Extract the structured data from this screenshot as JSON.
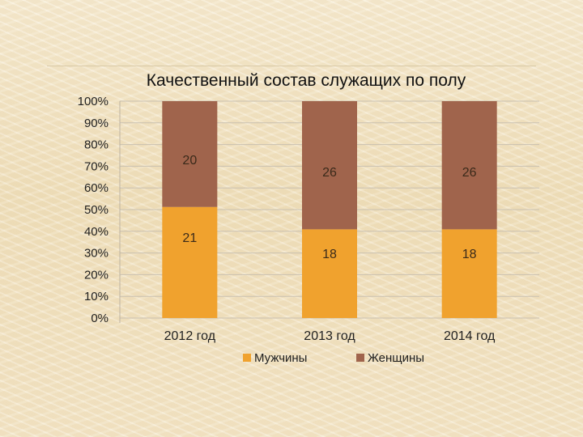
{
  "colors": {
    "men": "#f0a22e",
    "women": "#a0644c",
    "grid": "#c9c0b0",
    "axis": "#bdb3a2"
  },
  "chart_data": {
    "type": "bar",
    "stacked": "percent",
    "title": "Качественный состав служащих по полу",
    "categories": [
      "2012 год",
      "2013 год",
      "2014 год"
    ],
    "series": [
      {
        "name": "Мужчины",
        "values": [
          21,
          18,
          18
        ],
        "color": "#f0a22e"
      },
      {
        "name": "Женщины",
        "values": [
          20,
          26,
          26
        ],
        "color": "#a0644c"
      }
    ],
    "y_ticks": [
      "0%",
      "10%",
      "20%",
      "30%",
      "40%",
      "50%",
      "60%",
      "70%",
      "80%",
      "90%",
      "100%"
    ],
    "ylim": [
      0,
      100
    ],
    "grid": true,
    "legend_position": "bottom",
    "data_labels": true
  }
}
